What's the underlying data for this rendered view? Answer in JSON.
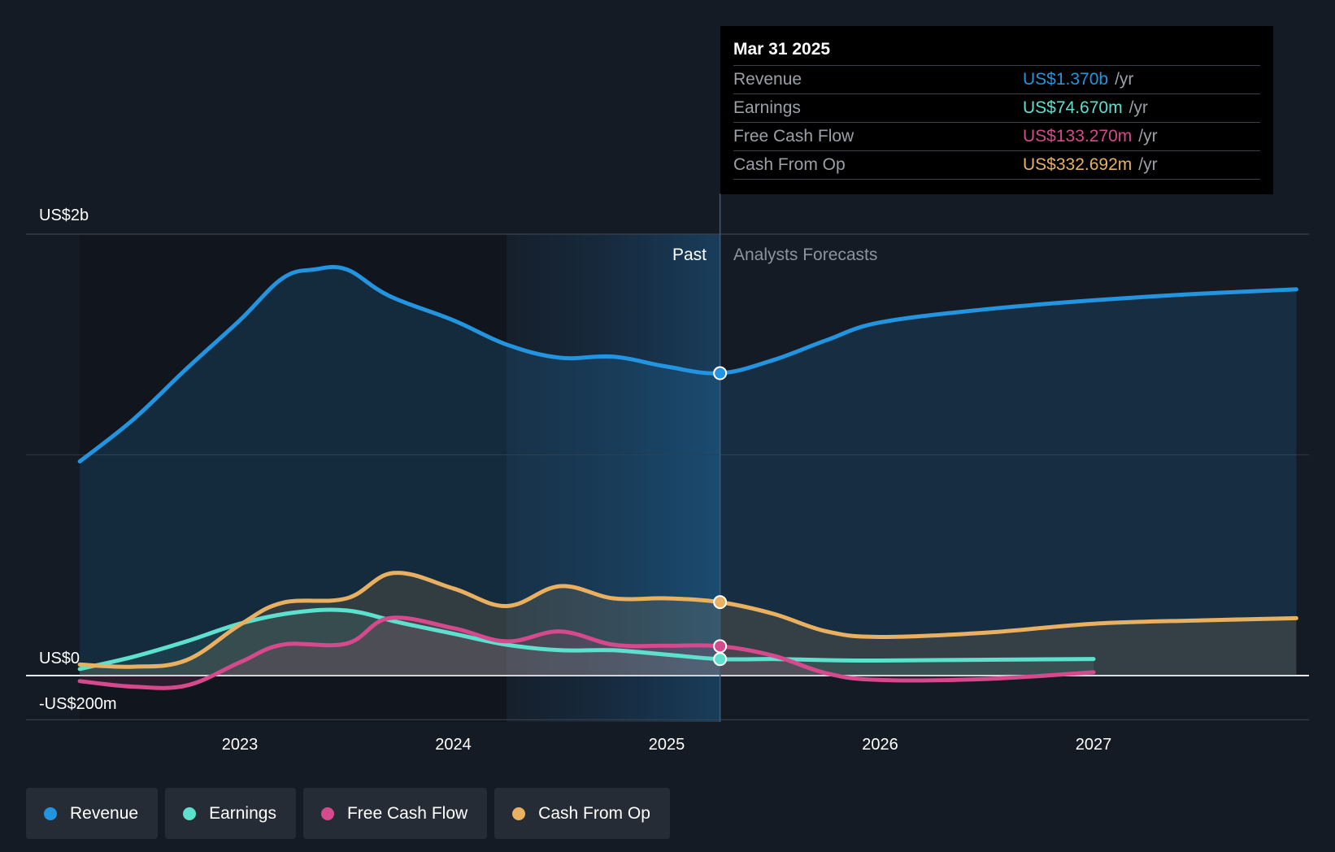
{
  "chart_data": {
    "type": "area",
    "title": "",
    "y_axis": {
      "label_top": "US$2b",
      "label_zero": "US$0",
      "label_bottom": "-US$200m",
      "ylim": [
        -200,
        2000
      ],
      "unit": "US$m"
    },
    "x_axis": {
      "ticks": [
        "2023",
        "2024",
        "2025",
        "2026",
        "2027"
      ],
      "xlim": [
        2022.25,
        2027.95
      ]
    },
    "regions": {
      "past_label": "Past",
      "forecast_label": "Analysts Forecasts",
      "divider_x": 2025.25,
      "highlight_start": 2024.25
    },
    "series": [
      {
        "name": "Revenue",
        "color": "#2394df",
        "points": [
          [
            2022.25,
            970
          ],
          [
            2022.5,
            1160
          ],
          [
            2022.75,
            1390
          ],
          [
            2023.0,
            1610
          ],
          [
            2023.2,
            1800
          ],
          [
            2023.35,
            1840
          ],
          [
            2023.5,
            1840
          ],
          [
            2023.7,
            1720
          ],
          [
            2024.0,
            1610
          ],
          [
            2024.25,
            1500
          ],
          [
            2024.5,
            1440
          ],
          [
            2024.75,
            1445
          ],
          [
            2025.0,
            1400
          ],
          [
            2025.25,
            1370
          ],
          [
            2025.5,
            1430
          ],
          [
            2025.75,
            1520
          ],
          [
            2026.0,
            1600
          ],
          [
            2026.5,
            1660
          ],
          [
            2027.0,
            1700
          ],
          [
            2027.5,
            1730
          ],
          [
            2027.95,
            1750
          ]
        ]
      },
      {
        "name": "Earnings",
        "color": "#5de0cd",
        "points": [
          [
            2022.25,
            30
          ],
          [
            2022.5,
            85
          ],
          [
            2022.75,
            155
          ],
          [
            2023.0,
            235
          ],
          [
            2023.25,
            285
          ],
          [
            2023.5,
            295
          ],
          [
            2023.75,
            240
          ],
          [
            2024.0,
            190
          ],
          [
            2024.25,
            140
          ],
          [
            2024.5,
            115
          ],
          [
            2024.75,
            115
          ],
          [
            2025.0,
            95
          ],
          [
            2025.25,
            74.67
          ],
          [
            2025.5,
            75
          ],
          [
            2025.75,
            70
          ],
          [
            2026.0,
            68
          ],
          [
            2026.5,
            72
          ],
          [
            2027.0,
            75
          ]
        ]
      },
      {
        "name": "Free Cash Flow",
        "color": "#d5498d",
        "points": [
          [
            2022.25,
            -25
          ],
          [
            2022.5,
            -50
          ],
          [
            2022.75,
            -45
          ],
          [
            2023.0,
            60
          ],
          [
            2023.2,
            140
          ],
          [
            2023.5,
            145
          ],
          [
            2023.7,
            260
          ],
          [
            2024.0,
            215
          ],
          [
            2024.25,
            155
          ],
          [
            2024.5,
            200
          ],
          [
            2024.75,
            140
          ],
          [
            2025.0,
            135
          ],
          [
            2025.25,
            133.27
          ],
          [
            2025.5,
            90
          ],
          [
            2025.75,
            10
          ],
          [
            2026.0,
            -20
          ],
          [
            2026.5,
            -15
          ],
          [
            2027.0,
            15
          ]
        ]
      },
      {
        "name": "Cash From Op",
        "color": "#e8b060",
        "points": [
          [
            2022.25,
            50
          ],
          [
            2022.5,
            40
          ],
          [
            2022.75,
            70
          ],
          [
            2023.0,
            230
          ],
          [
            2023.2,
            330
          ],
          [
            2023.5,
            350
          ],
          [
            2023.72,
            465
          ],
          [
            2024.0,
            395
          ],
          [
            2024.25,
            315
          ],
          [
            2024.5,
            405
          ],
          [
            2024.75,
            350
          ],
          [
            2025.0,
            350
          ],
          [
            2025.25,
            332.69
          ],
          [
            2025.5,
            280
          ],
          [
            2025.75,
            200
          ],
          [
            2026.0,
            175
          ],
          [
            2026.5,
            195
          ],
          [
            2027.0,
            235
          ],
          [
            2027.5,
            250
          ],
          [
            2027.95,
            260
          ]
        ]
      }
    ],
    "tooltip": {
      "date": "Mar 31 2025",
      "unit": "/yr",
      "rows": [
        {
          "name": "Revenue",
          "value": "US$1.370b",
          "color": "#2394df"
        },
        {
          "name": "Earnings",
          "value": "US$74.670m",
          "color": "#5de0cd"
        },
        {
          "name": "Free Cash Flow",
          "value": "US$133.270m",
          "color": "#d5498d"
        },
        {
          "name": "Cash From Op",
          "value": "US$332.692m",
          "color": "#e8b060"
        }
      ]
    }
  },
  "legend": [
    {
      "label": "Revenue",
      "color": "#2394df"
    },
    {
      "label": "Earnings",
      "color": "#5de0cd"
    },
    {
      "label": "Free Cash Flow",
      "color": "#d5498d"
    },
    {
      "label": "Cash From Op",
      "color": "#e8b060"
    }
  ]
}
